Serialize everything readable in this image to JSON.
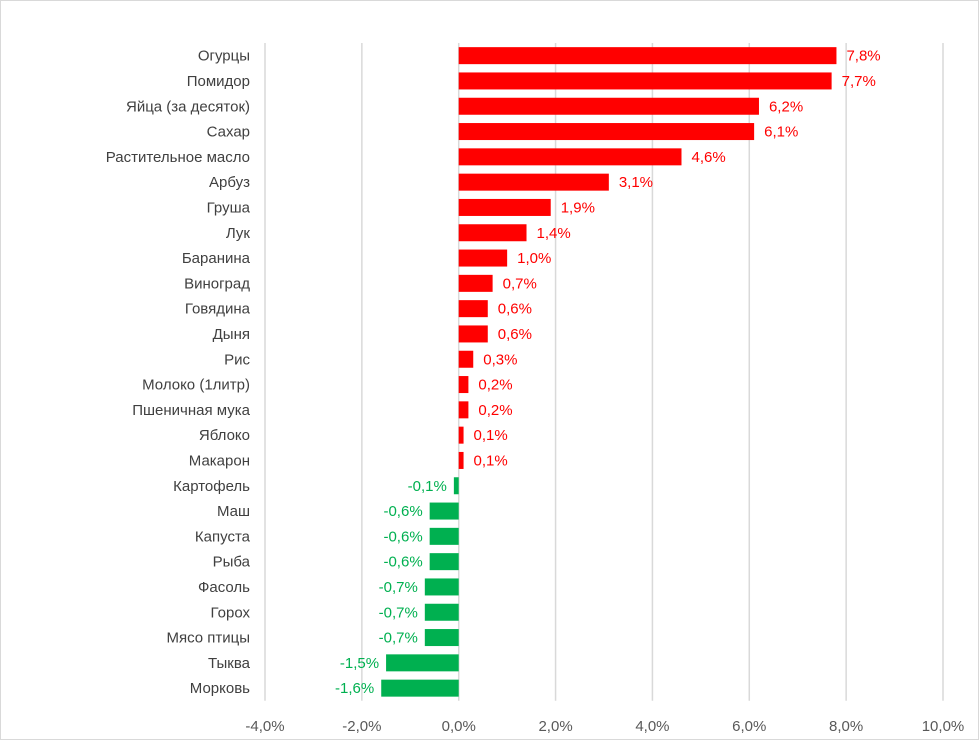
{
  "chart_data": {
    "type": "bar",
    "orientation": "horizontal",
    "title": "",
    "xlabel": "",
    "ylabel": "",
    "xlim": [
      -4.0,
      10.0
    ],
    "x_ticks": [
      -4,
      -2,
      0,
      2,
      4,
      6,
      8,
      10
    ],
    "x_tick_labels": [
      "-4,0%",
      "-2,0%",
      "0,0%",
      "2,0%",
      "4,0%",
      "6,0%",
      "8,0%",
      "10,0%"
    ],
    "grid": "vertical",
    "legend": "none",
    "colors": {
      "positive": "#ff0000",
      "negative": "#00b050",
      "grid": "#d9d9d9"
    },
    "categories": [
      "Огурцы",
      "Помидор",
      "Яйца (за десяток)",
      "Сахар",
      "Растительное масло",
      "Арбуз",
      "Груша",
      "Лук",
      "Баранина",
      "Виноград",
      "Говядина",
      "Дыня",
      "Рис",
      "Молоко (1литр)",
      "Пшеничная мука",
      "Яблоко",
      "Макарон",
      "Картофель",
      "Маш",
      "Капуста",
      "Рыба",
      "Фасоль",
      "Горох",
      "Мясо птицы",
      "Тыква",
      "Морковь"
    ],
    "values": [
      7.8,
      7.7,
      6.2,
      6.1,
      4.6,
      3.1,
      1.9,
      1.4,
      1.0,
      0.7,
      0.6,
      0.6,
      0.3,
      0.2,
      0.2,
      0.1,
      0.1,
      -0.1,
      -0.6,
      -0.6,
      -0.6,
      -0.7,
      -0.7,
      -0.7,
      -1.5,
      -1.6
    ],
    "data_labels": [
      "7,8%",
      "7,7%",
      "6,2%",
      "6,1%",
      "4,6%",
      "3,1%",
      "1,9%",
      "1,4%",
      "1,0%",
      "0,7%",
      "0,6%",
      "0,6%",
      "0,3%",
      "0,2%",
      "0,2%",
      "0,1%",
      "0,1%",
      "-0,1%",
      "-0,6%",
      "-0,6%",
      "-0,6%",
      "-0,7%",
      "-0,7%",
      "-0,7%",
      "-1,5%",
      "-1,6%"
    ]
  }
}
